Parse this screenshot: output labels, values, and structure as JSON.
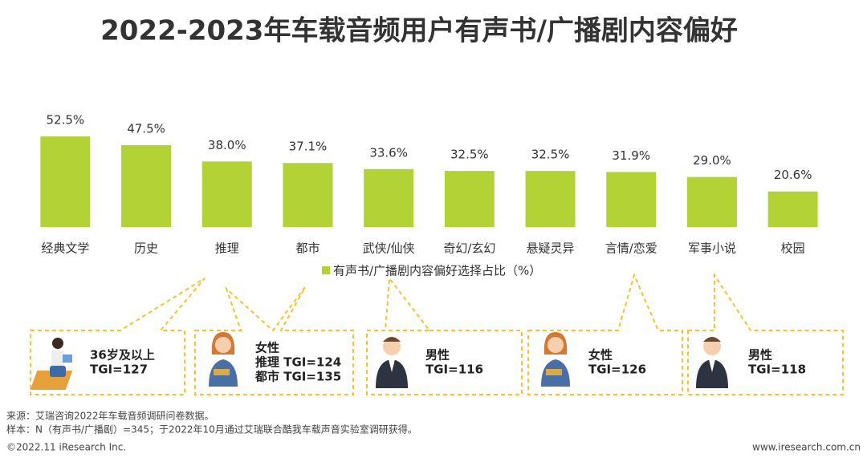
{
  "chart_data": {
    "type": "bar",
    "title": "2022-2023年车载音频用户有声书/广播剧内容偏好",
    "categories": [
      "经典文学",
      "历史",
      "推理",
      "都市",
      "武侠/仙侠",
      "奇幻/玄幻",
      "悬疑灵异",
      "言情/恋爱",
      "军事小说",
      "校园"
    ],
    "series": [
      {
        "name": "有声书/广播剧内容偏好选择占比（%）",
        "color": "#b2d235",
        "values": [
          52.5,
          47.5,
          38.0,
          37.1,
          33.6,
          32.5,
          32.5,
          31.9,
          29.0,
          20.6
        ],
        "value_labels": [
          "52.5%",
          "47.5%",
          "38.0%",
          "37.1%",
          "33.6%",
          "32.5%",
          "32.5%",
          "31.9%",
          "29.0%",
          "20.6%"
        ]
      }
    ],
    "annotations": [
      {
        "lines": [
          "36岁及以上",
          "TGI=127"
        ]
      },
      {
        "lines": [
          "女性",
          "推理 TGI=124",
          "都市 TGI=135"
        ]
      },
      {
        "lines": [
          "男性",
          "TGI=116"
        ]
      },
      {
        "lines": [
          "女性",
          "TGI=126"
        ]
      },
      {
        "lines": [
          "男性",
          "TGI=118"
        ]
      }
    ],
    "source": "来源：艾瑞咨询2022年车载音频调研问卷数据。",
    "sample": "样本：N（有声书/广播剧）=345；于2022年10月通过艾瑞联合酷我车载声音实验室调研获得。",
    "copyright": "©2022.11 iResearch Inc.",
    "website": "www.iresearch.com.cn"
  }
}
